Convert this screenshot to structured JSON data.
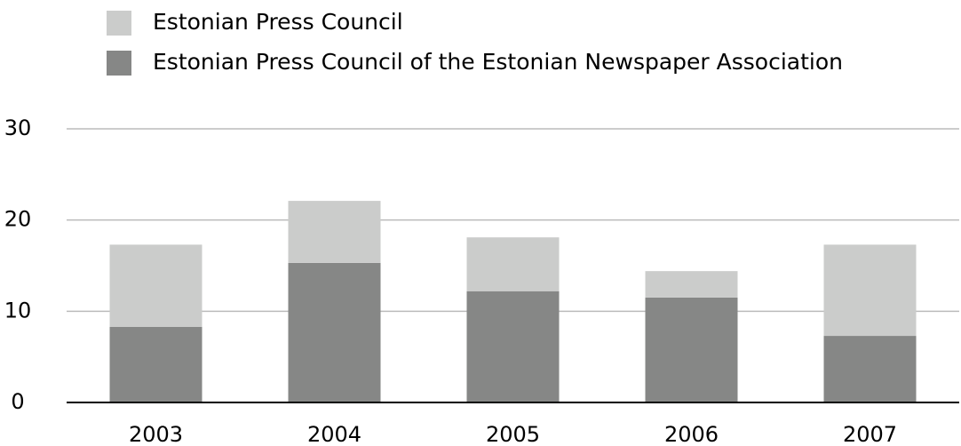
{
  "chart_data": {
    "type": "stacked_bar",
    "categories": [
      "2003",
      "2004",
      "2005",
      "2006",
      "2007"
    ],
    "series": [
      {
        "name": "Estonian Press Council",
        "color": "#cbcccb",
        "values": [
          9.0,
          6.8,
          5.9,
          2.9,
          10.0
        ]
      },
      {
        "name": "Estonian Press Council of the Estonian Newspaper Association",
        "color": "#868786",
        "values": [
          8.3,
          15.3,
          12.2,
          11.5,
          7.3
        ]
      }
    ],
    "ylim": [
      0,
      30
    ],
    "yticks": [
      0,
      10,
      20,
      30
    ],
    "grid": true,
    "legend": "top"
  }
}
